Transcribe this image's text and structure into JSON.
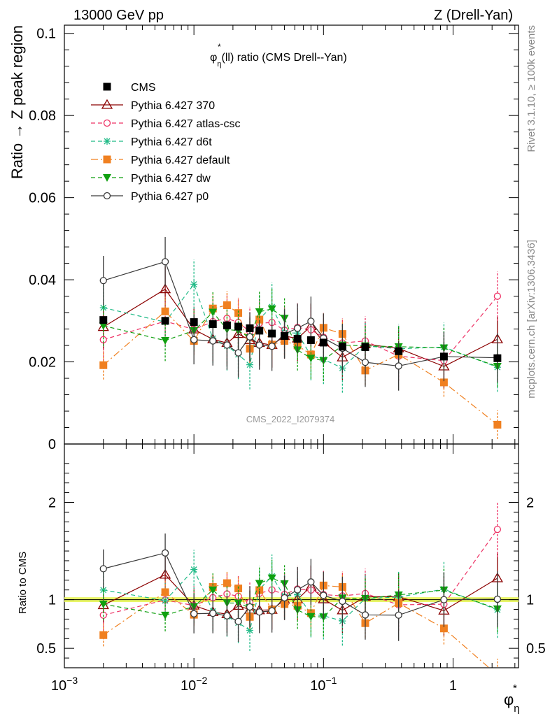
{
  "header": {
    "left": "13000 GeV pp",
    "right": "Z (Drell-Yan)"
  },
  "side_labels": {
    "rivet": "Rivet 3.1.10, ≥ 100k events",
    "mcplots": "mcplots.cern.ch [arXiv:1306.3436]"
  },
  "chart_data": {
    "type": "line",
    "title_main": "φ",
    "title_sup": "*",
    "title_sub": "η",
    "title_rest": "(ll) ratio (CMS Drell--Yan)",
    "watermark": "CMS_2022_I2079374",
    "ylabel": "Ratio → Z peak region",
    "ratio_ylabel": "Ratio to CMS",
    "xlabel_main": "φ",
    "xlabel_sup": "*",
    "xlabel_sub": "η",
    "x_scale": "log",
    "xlim": [
      0.001,
      3.2
    ],
    "ylim": [
      0,
      0.102
    ],
    "ratio_ylim": [
      0.3,
      2.6
    ],
    "x_ticks": [
      {
        "v": 0.001,
        "base": "10",
        "exp": "−3"
      },
      {
        "v": 0.01,
        "base": "10",
        "exp": "−2"
      },
      {
        "v": 0.1,
        "base": "10",
        "exp": "−1"
      },
      {
        "v": 1,
        "base": "1",
        "exp": ""
      }
    ],
    "y_ticks": [
      {
        "v": 0,
        "label": "0"
      },
      {
        "v": 0.02,
        "label": "0.02"
      },
      {
        "v": 0.04,
        "label": "0.04"
      },
      {
        "v": 0.06,
        "label": "0.06"
      },
      {
        "v": 0.08,
        "label": "0.08"
      },
      {
        "v": 0.1,
        "label": "0.1"
      }
    ],
    "ratio_y_ticks": [
      {
        "v": 0.5,
        "label": "0.5"
      },
      {
        "v": 1,
        "label": "1"
      },
      {
        "v": 2,
        "label": "2"
      }
    ],
    "legend_position": "top-left",
    "x": [
      0.002,
      0.006,
      0.01,
      0.014,
      0.018,
      0.022,
      0.027,
      0.032,
      0.04,
      0.05,
      0.063,
      0.08,
      0.1,
      0.14,
      0.21,
      0.38,
      0.85,
      2.2
    ],
    "series": [
      {
        "name": "CMS",
        "color": "#000000",
        "marker": "filled-square",
        "dash": "none",
        "err": 0.0005,
        "values": [
          0.0302,
          0.03,
          0.0297,
          0.0292,
          0.0289,
          0.0286,
          0.0282,
          0.0276,
          0.0269,
          0.0263,
          0.0256,
          0.0253,
          0.0247,
          0.0237,
          0.0236,
          0.0226,
          0.0213,
          0.0209
        ]
      },
      {
        "name": "Pythia 6.427 370",
        "color": "#8b0000",
        "marker": "open-triangle",
        "dash": "none",
        "err": 0.0055,
        "values": [
          0.0285,
          0.0377,
          0.0279,
          0.0255,
          0.0246,
          0.0268,
          0.0253,
          0.0246,
          0.0241,
          0.0263,
          0.0257,
          0.0287,
          0.0248,
          0.0211,
          0.0243,
          0.0233,
          0.0189,
          0.0255
        ]
      },
      {
        "name": "Pythia 6.427 atlas-csc",
        "color": "#ee3366",
        "marker": "open-circle",
        "dash": "6,4",
        "err": 0.006,
        "values": [
          0.0254,
          0.0299,
          0.0279,
          0.0298,
          0.0306,
          0.0296,
          0.0274,
          0.0294,
          0.0296,
          0.0277,
          0.0284,
          0.0278,
          0.026,
          0.0246,
          0.0251,
          0.0214,
          0.0203,
          0.036
        ]
      },
      {
        "name": "Pythia 6.427 d6t",
        "color": "#22bb88",
        "marker": "asterisk",
        "dash": "6,4",
        "err": 0.006,
        "values": [
          0.0332,
          0.0297,
          0.0389,
          0.0257,
          0.0239,
          0.0218,
          0.0193,
          0.0305,
          0.0334,
          0.0271,
          0.027,
          0.0215,
          0.0206,
          0.0185,
          0.0239,
          0.0232,
          0.0236,
          0.0187
        ]
      },
      {
        "name": "Pythia 6.427 default",
        "color": "#f08020",
        "marker": "filled-square",
        "dash": "10,4,2,4",
        "err": 0.0035,
        "values": [
          0.0192,
          0.0323,
          0.0251,
          0.033,
          0.0338,
          0.0319,
          0.0232,
          0.0303,
          0.0242,
          0.0251,
          0.024,
          0.0218,
          0.0283,
          0.0268,
          0.0179,
          0.0218,
          0.015,
          0.0047
        ]
      },
      {
        "name": "Pythia 6.427 dw",
        "color": "#10a010",
        "marker": "filled-triangle-down",
        "dash": "6,4",
        "err": 0.005,
        "values": [
          0.0288,
          0.0252,
          0.0276,
          0.0321,
          0.0279,
          0.0276,
          0.0259,
          0.0322,
          0.0329,
          0.0306,
          0.0229,
          0.0209,
          0.0203,
          0.0241,
          0.0239,
          0.0237,
          0.0234,
          0.0189
        ]
      },
      {
        "name": "Pythia 6.427 p0",
        "color": "#3a3a3a",
        "marker": "open-circle",
        "dash": "none",
        "err": 0.006,
        "values": [
          0.0398,
          0.0444,
          0.0254,
          0.0251,
          0.0241,
          0.0222,
          0.0261,
          0.0241,
          0.0238,
          0.0268,
          0.0282,
          0.0299,
          0.0258,
          0.0233,
          0.0199,
          0.019,
          0.0213,
          0.021
        ]
      }
    ]
  }
}
